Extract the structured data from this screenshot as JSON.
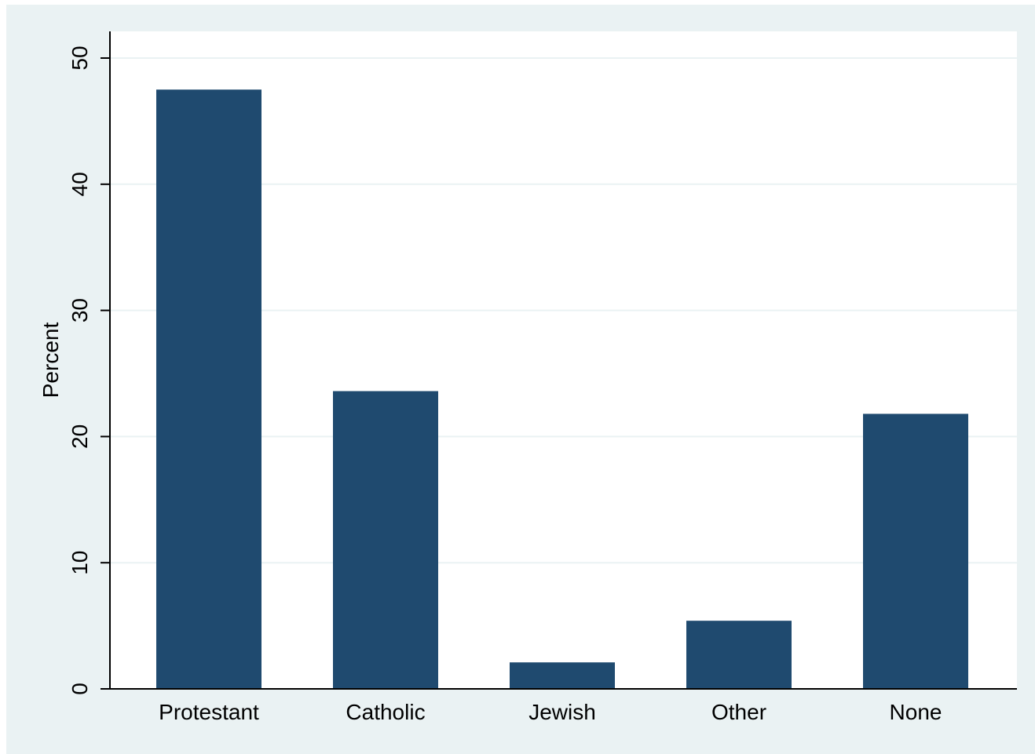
{
  "chart_data": {
    "type": "bar",
    "categories": [
      "Protestant",
      "Catholic",
      "Jewish",
      "Other",
      "None"
    ],
    "values": [
      47.5,
      23.6,
      2.1,
      5.4,
      21.8
    ],
    "title": "",
    "xlabel": "",
    "ylabel": "Percent",
    "ylim": [
      0,
      52
    ],
    "yticks": [
      0,
      10,
      20,
      30,
      40,
      50
    ],
    "grid": true,
    "colors": {
      "bar": "#1f4a6f",
      "grid": "#eaf2f3",
      "plot_background": "#ffffff",
      "outer_background": "#eaf2f3"
    }
  }
}
